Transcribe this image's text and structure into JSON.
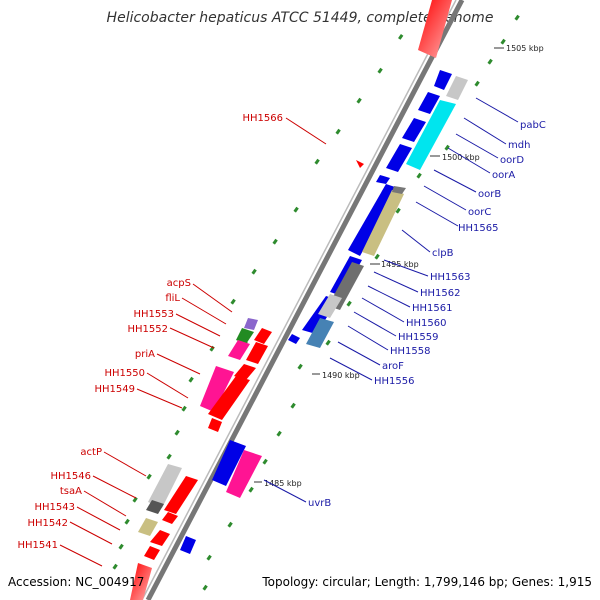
{
  "title": "Helicobacter hepaticus ATCC 51449, complete genome",
  "footer": {
    "accession": "Accession: NC_004917",
    "summary": "Topology: circular; Length: 1,799,146 bp; Genes: 1,915"
  },
  "colors": {
    "label_left": "#cc0000",
    "label_right": "#1a1aa6",
    "leader_left": "#cc0000",
    "leader_right": "#1a1aa6",
    "backbone": "#888888",
    "dots": "#2e8b2e"
  },
  "scale_ticks": [
    {
      "label": "1505 kbp"
    },
    {
      "label": "1500 kbp"
    },
    {
      "label": "1495 kbp"
    },
    {
      "label": "1490 kbp"
    },
    {
      "label": "1485 kbp"
    }
  ],
  "left_labels": [
    {
      "name": "HH1566"
    },
    {
      "name": "acpS"
    },
    {
      "name": "fliL"
    },
    {
      "name": "HH1553"
    },
    {
      "name": "HH1552"
    },
    {
      "name": "priA"
    },
    {
      "name": "HH1550"
    },
    {
      "name": "HH1549"
    },
    {
      "name": "actP"
    },
    {
      "name": "HH1546"
    },
    {
      "name": "tsaA"
    },
    {
      "name": "HH1543"
    },
    {
      "name": "HH1542"
    },
    {
      "name": "HH1541"
    }
  ],
  "right_labels": [
    {
      "name": "pabC"
    },
    {
      "name": "mdh"
    },
    {
      "name": "oorD"
    },
    {
      "name": "oorA"
    },
    {
      "name": "oorB"
    },
    {
      "name": "oorC"
    },
    {
      "name": "HH1565"
    },
    {
      "name": "clpB"
    },
    {
      "name": "HH1563"
    },
    {
      "name": "HH1562"
    },
    {
      "name": "HH1561"
    },
    {
      "name": "HH1560"
    },
    {
      "name": "HH1559"
    },
    {
      "name": "HH1558"
    },
    {
      "name": "aroF"
    },
    {
      "name": "HH1556"
    },
    {
      "name": "uvrB"
    }
  ]
}
